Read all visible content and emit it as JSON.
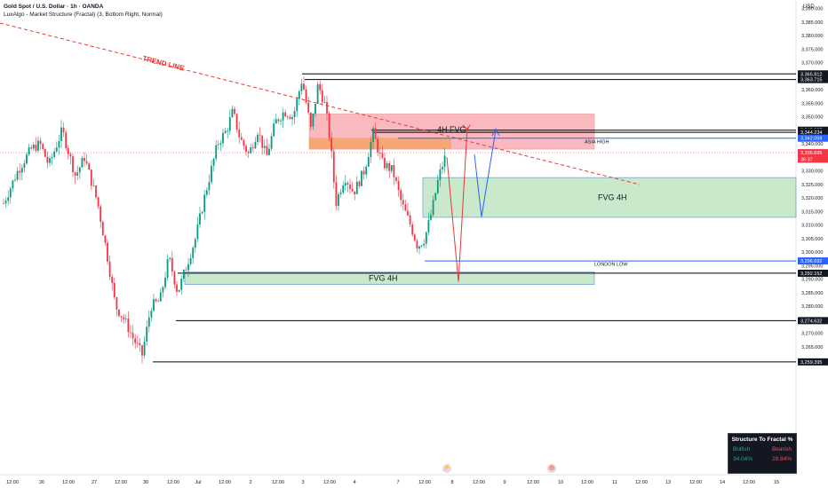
{
  "header": {
    "title": "Gold Spot / U.S. Dollar · 1h · OANDA",
    "indicator": "LuxAlgo - Market Structure (Fractal) (3, Bottom Right, Normal)",
    "currency": "USD"
  },
  "chart_data": {
    "type": "candlestick",
    "ylim": [
      3255,
      3395
    ],
    "y_ticks": [
      "3,390.000",
      "3,385.000",
      "3,380.000",
      "3,375.000",
      "3,370.000",
      "3,365.000",
      "3,360.000",
      "3,355.000",
      "3,350.000",
      "3,345.000",
      "3,340.000",
      "3,335.000",
      "3,330.000",
      "3,325.000",
      "3,320.000",
      "3,315.000",
      "3,310.000",
      "3,305.000",
      "3,300.000",
      "3,295.000",
      "3,290.000",
      "3,285.000",
      "3,280.000",
      "3,275.000",
      "3,270.000",
      "3,265.000",
      "3,260.000"
    ],
    "x_ticks": [
      "12:00",
      "26",
      "12:00",
      "27",
      "12:00",
      "30",
      "12:00",
      "Jul",
      "12:00",
      "2",
      "12:00",
      "3",
      "12:00",
      "4",
      "7",
      "12:00",
      "8",
      "12:00",
      "9",
      "12:00",
      "10",
      "12:00",
      "11",
      "12:00",
      "13",
      "12:00",
      "14",
      "12:00",
      "15",
      "12:00",
      "16"
    ],
    "price_labels": [
      {
        "text": "3,365.812",
        "value": 3365.812,
        "color": "#131722"
      },
      {
        "text": "3,363.715",
        "value": 3363.715,
        "color": "#131722"
      },
      {
        "text": "3,345.007",
        "value": 3345.007,
        "color": "#131722"
      },
      {
        "text": "3,344.234",
        "value": 3344.234,
        "color": "#131722"
      },
      {
        "text": "3,342.059",
        "value": 3342.059,
        "color": "#2962ff"
      },
      {
        "text": "3,336.695",
        "value": 3336.695,
        "color": "#f23645"
      },
      {
        "text": "36:37",
        "value": 3334.3,
        "color": "#f23645"
      },
      {
        "text": "3,296.692",
        "value": 3296.692,
        "color": "#2962ff"
      },
      {
        "text": "3,292.152",
        "value": 3292.152,
        "color": "#131722"
      },
      {
        "text": "3,274.632",
        "value": 3274.632,
        "color": "#131722"
      },
      {
        "text": "3,259.395",
        "value": 3259.395,
        "color": "#131722"
      }
    ],
    "annotations": {
      "trend_line": "TREND LINE",
      "fvg_4h_top": "4H FVG",
      "asia_high": "ASIA HIGH",
      "fvg_4h_right": "FVG 4H",
      "london_low": "LONDON LOW",
      "fvg_4h_bottom": "FVG 4H"
    },
    "zones": [
      {
        "name": "4h-fvg-zone",
        "low": 3338.0,
        "high": 3351.0,
        "color": "#f7a1a8"
      },
      {
        "name": "fvg-4h-right-zone",
        "low": 3312.8,
        "high": 3327.5,
        "color": "#b8e0b8"
      },
      {
        "name": "fvg-4h-bottom-zone",
        "low": 3288.0,
        "high": 3292.6,
        "color": "#b8e0b8"
      }
    ],
    "levels": [
      3365.812,
      3363.715,
      3345.007,
      3344.234,
      3342.059,
      3296.692,
      3292.152,
      3274.632,
      3259.395
    ]
  },
  "structure_panel": {
    "title": "Structure To Fractal %",
    "bullish_label": "Bullish",
    "bearish_label": "Bearish",
    "bullish_value": "34.04%",
    "bearish_value": "29.84%"
  }
}
